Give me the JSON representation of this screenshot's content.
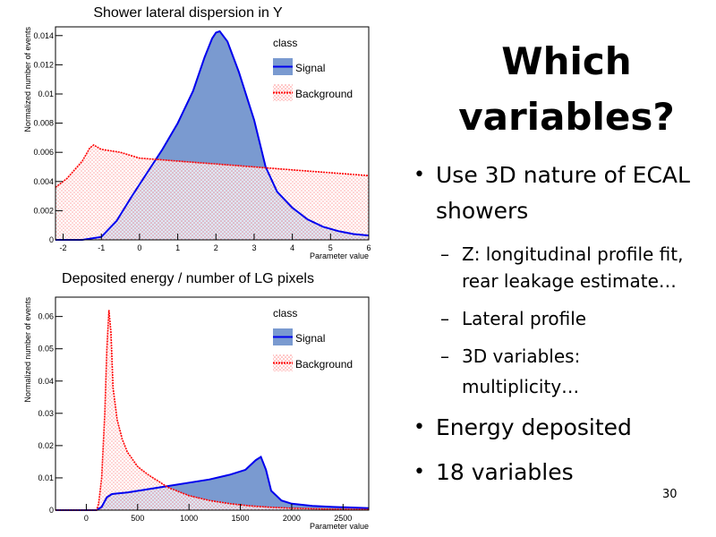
{
  "slide": {
    "title_line1": "Which",
    "title_line2": "variables?",
    "bullets": [
      {
        "line1": "Use 3D nature of ECAL",
        "line2": "showers"
      },
      {
        "text": "Energy deposited"
      },
      {
        "text": "18 variables"
      }
    ],
    "subbullets": [
      {
        "line1": "Z: longitudinal profile fit,",
        "line2": "rear leakage estimate…"
      },
      {
        "line1": "Lateral profile",
        "line2": ""
      },
      {
        "line1": "3D variables:",
        "line2": "multiplicity…"
      }
    ],
    "page_number": "30",
    "colors": {
      "signal_fill": "#7a9ad0",
      "signal_line": "#0000ee",
      "background_line": "#ff0000",
      "background_hatch": "#ff8888"
    }
  },
  "chart_data": [
    {
      "type": "area",
      "title": "Shower lateral dispersion in Y",
      "xlabel": "Parameter value",
      "ylabel": "Normalized number of events",
      "xlim": [
        -2.2,
        6
      ],
      "ylim": [
        0,
        0.0146
      ],
      "xticks": [
        -2,
        -1,
        0,
        1,
        2,
        3,
        4,
        5,
        6
      ],
      "xtick_labels": [
        "-2",
        "-1",
        "0",
        "1",
        "2",
        "3",
        "4",
        "5",
        "6"
      ],
      "yticks": [
        0,
        0.002,
        0.004,
        0.006,
        0.008,
        0.01,
        0.012,
        0.014
      ],
      "ytick_labels": [
        "0",
        "0.002",
        "0.004",
        "0.006",
        "0.008",
        "0.01",
        "0.012",
        "0.014"
      ],
      "legend": {
        "title": "class",
        "position": "top-right"
      },
      "grid": false,
      "series": [
        {
          "name": "Signal",
          "style": "filled",
          "x": [
            -2.2,
            -1.5,
            -1.0,
            -0.6,
            -0.2,
            0.2,
            0.6,
            1.0,
            1.4,
            1.7,
            1.9,
            2.0,
            2.1,
            2.3,
            2.6,
            3.0,
            3.3,
            3.6,
            4.0,
            4.4,
            4.8,
            5.2,
            5.6,
            6.0
          ],
          "y": [
            0,
            0,
            0.0002,
            0.0013,
            0.003,
            0.0046,
            0.0062,
            0.008,
            0.0102,
            0.0125,
            0.0138,
            0.0142,
            0.0143,
            0.0136,
            0.0115,
            0.0082,
            0.005,
            0.0033,
            0.0022,
            0.0014,
            0.0009,
            0.0006,
            0.0004,
            0.0003
          ]
        },
        {
          "name": "Background",
          "style": "hatched",
          "x": [
            -2.2,
            -1.9,
            -1.5,
            -1.3,
            -1.2,
            -1.0,
            -0.5,
            0.0,
            0.5,
            1.0,
            2.0,
            3.0,
            4.0,
            5.0,
            5.5,
            6.0
          ],
          "y": [
            0.0036,
            0.0042,
            0.0054,
            0.0063,
            0.0065,
            0.0062,
            0.006,
            0.0056,
            0.0055,
            0.0054,
            0.0052,
            0.005,
            0.0048,
            0.0046,
            0.0045,
            0.0044
          ]
        }
      ]
    },
    {
      "type": "area",
      "title": "Deposited energy / number of LG pixels",
      "xlabel": "Parameter value",
      "ylabel": "Normalized number of events",
      "xlim": [
        -300,
        2750
      ],
      "ylim": [
        0,
        0.066
      ],
      "xticks": [
        0,
        500,
        1000,
        1500,
        2000,
        2500
      ],
      "xtick_labels": [
        "0",
        "500",
        "1000",
        "1500",
        "2000",
        "2500"
      ],
      "yticks": [
        0,
        0.01,
        0.02,
        0.03,
        0.04,
        0.05,
        0.06
      ],
      "ytick_labels": [
        "0",
        "0.01",
        "0.02",
        "0.03",
        "0.04",
        "0.05",
        "0.06"
      ],
      "legend": {
        "title": "class",
        "position": "top-right"
      },
      "grid": false,
      "series": [
        {
          "name": "Signal",
          "style": "filled",
          "x": [
            -300,
            100,
            150,
            200,
            250,
            400,
            600,
            800,
            1000,
            1200,
            1400,
            1550,
            1600,
            1650,
            1700,
            1750,
            1800,
            1900,
            2000,
            2200,
            2400,
            2600,
            2750
          ],
          "y": [
            0,
            0,
            0.001,
            0.004,
            0.005,
            0.0055,
            0.0065,
            0.0075,
            0.0085,
            0.0095,
            0.011,
            0.0125,
            0.014,
            0.0155,
            0.0165,
            0.0125,
            0.006,
            0.003,
            0.002,
            0.0013,
            0.001,
            0.0008,
            0.0006
          ]
        },
        {
          "name": "Background",
          "style": "hatched",
          "x": [
            -300,
            100,
            120,
            150,
            180,
            200,
            220,
            240,
            260,
            280,
            300,
            350,
            400,
            500,
            600,
            800,
            1000,
            1200,
            1400,
            1600,
            1800,
            2000,
            2400,
            2750
          ],
          "y": [
            0,
            0,
            0.002,
            0.01,
            0.03,
            0.05,
            0.062,
            0.055,
            0.038,
            0.033,
            0.028,
            0.022,
            0.018,
            0.0135,
            0.011,
            0.007,
            0.0045,
            0.003,
            0.002,
            0.0013,
            0.0009,
            0.0006,
            0.0003,
            0.0002
          ]
        }
      ]
    }
  ]
}
